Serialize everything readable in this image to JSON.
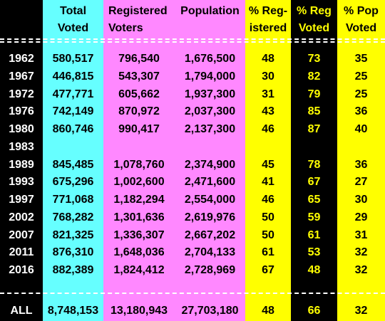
{
  "colors": {
    "background": "#000000",
    "total_voted": "#66FFFF",
    "registered": "#FF88FF",
    "population": "#FF88FF",
    "pct_registered": "#FFFF00",
    "pct_reg_voted": "#000000",
    "pct_pop_voted": "#FFFF00",
    "yellow_text": "#FFFF00",
    "white_text": "#FFFFFF"
  },
  "headers": {
    "total_voted": [
      "Total",
      "Voted"
    ],
    "registered": [
      "Registered",
      "Voters"
    ],
    "population": [
      "Population",
      ""
    ],
    "pct_registered": [
      "% Reg-",
      "istered"
    ],
    "pct_reg_voted": [
      "% Reg",
      "Voted"
    ],
    "pct_pop_voted": [
      "% Pop",
      "Voted"
    ]
  },
  "rows": [
    {
      "year": "1962",
      "total": "580,517",
      "registered": "796,540",
      "population": "1,676,500",
      "pct_reg": "48",
      "pct_reg_voted": "73",
      "pct_pop_voted": "35"
    },
    {
      "year": "1967",
      "total": "446,815",
      "registered": "543,307",
      "population": "1,794,000",
      "pct_reg": "30",
      "pct_reg_voted": "82",
      "pct_pop_voted": "25"
    },
    {
      "year": "1972",
      "total": "477,771",
      "registered": "605,662",
      "population": "1,937,300",
      "pct_reg": "31",
      "pct_reg_voted": "79",
      "pct_pop_voted": "25"
    },
    {
      "year": "1976",
      "total": "742,149",
      "registered": "870,972",
      "population": "2,037,300",
      "pct_reg": "43",
      "pct_reg_voted": "85",
      "pct_pop_voted": "36"
    },
    {
      "year": "1980",
      "total": "860,746",
      "registered": "990,417",
      "population": "2,137,300",
      "pct_reg": "46",
      "pct_reg_voted": "87",
      "pct_pop_voted": "40"
    },
    {
      "year": "1983",
      "total": "",
      "registered": "",
      "population": "",
      "pct_reg": "",
      "pct_reg_voted": "",
      "pct_pop_voted": ""
    },
    {
      "year": "1989",
      "total": "845,485",
      "registered": "1,078,760",
      "population": "2,374,900",
      "pct_reg": "45",
      "pct_reg_voted": "78",
      "pct_pop_voted": "36"
    },
    {
      "year": "1993",
      "total": "675,296",
      "registered": "1,002,600",
      "population": "2,471,600",
      "pct_reg": "41",
      "pct_reg_voted": "67",
      "pct_pop_voted": "27"
    },
    {
      "year": "1997",
      "total": "771,068",
      "registered": "1,182,294",
      "population": "2,554,000",
      "pct_reg": "46",
      "pct_reg_voted": "65",
      "pct_pop_voted": "30"
    },
    {
      "year": "2002",
      "total": "768,282",
      "registered": "1,301,636",
      "population": "2,619,976",
      "pct_reg": "50",
      "pct_reg_voted": "59",
      "pct_pop_voted": "29"
    },
    {
      "year": "2007",
      "total": "821,325",
      "registered": "1,336,307",
      "population": "2,667,202",
      "pct_reg": "50",
      "pct_reg_voted": "61",
      "pct_pop_voted": "31"
    },
    {
      "year": "2011",
      "total": "876,310",
      "registered": "1,648,036",
      "population": "2,704,133",
      "pct_reg": "61",
      "pct_reg_voted": "53",
      "pct_pop_voted": "32"
    },
    {
      "year": "2016",
      "total": "882,389",
      "registered": "1,824,412",
      "population": "2,728,969",
      "pct_reg": "67",
      "pct_reg_voted": "48",
      "pct_pop_voted": "32"
    }
  ],
  "totals": {
    "label": "ALL",
    "total": "8,748,153",
    "registered": "13,180,943",
    "population": "27,703,180",
    "pct_reg": "48",
    "pct_reg_voted": "66",
    "pct_pop_voted": "32"
  }
}
